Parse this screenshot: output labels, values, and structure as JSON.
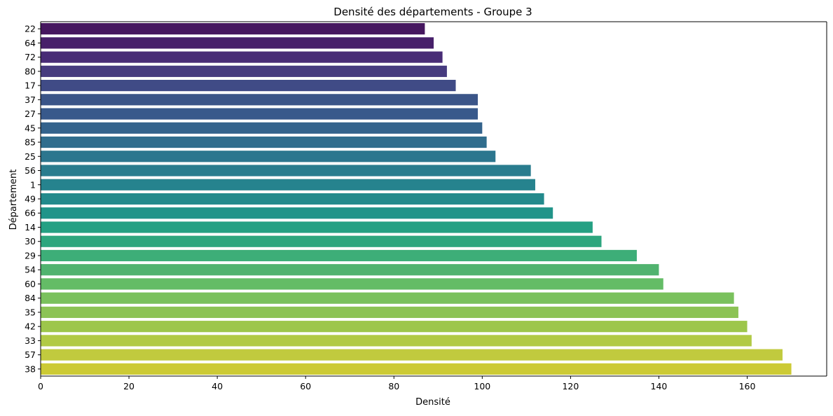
{
  "chart_data": {
    "type": "bar",
    "orientation": "horizontal",
    "title": "Densité des départements - Groupe 3",
    "xlabel": "Densité",
    "ylabel": "Département",
    "xlim": [
      0,
      178
    ],
    "xticks": [
      0,
      20,
      40,
      60,
      80,
      100,
      120,
      140,
      160
    ],
    "grid": false,
    "legend": "none",
    "categories": [
      "22",
      "64",
      "72",
      "80",
      "17",
      "37",
      "27",
      "45",
      "85",
      "25",
      "56",
      "1",
      "49",
      "66",
      "14",
      "30",
      "29",
      "54",
      "60",
      "84",
      "35",
      "42",
      "33",
      "57",
      "38"
    ],
    "values": [
      87,
      89,
      91,
      92,
      94,
      99,
      99,
      100,
      101,
      103,
      111,
      112,
      114,
      116,
      125,
      127,
      135,
      140,
      141,
      157,
      158,
      160,
      161,
      168,
      170
    ],
    "colors": [
      "#46175f",
      "#47206a",
      "#482c76",
      "#463b7f",
      "#404b86",
      "#3b5588",
      "#38598b",
      "#34638c",
      "#306d8d",
      "#2c768e",
      "#297c8e",
      "#26838e",
      "#238a8c",
      "#219489",
      "#24a083",
      "#2da67e",
      "#3dae78",
      "#51b36f",
      "#64bc66",
      "#7ac15d",
      "#8cc355",
      "#9dc64b",
      "#b1ca45",
      "#c1ca3e",
      "#ccca35"
    ]
  }
}
